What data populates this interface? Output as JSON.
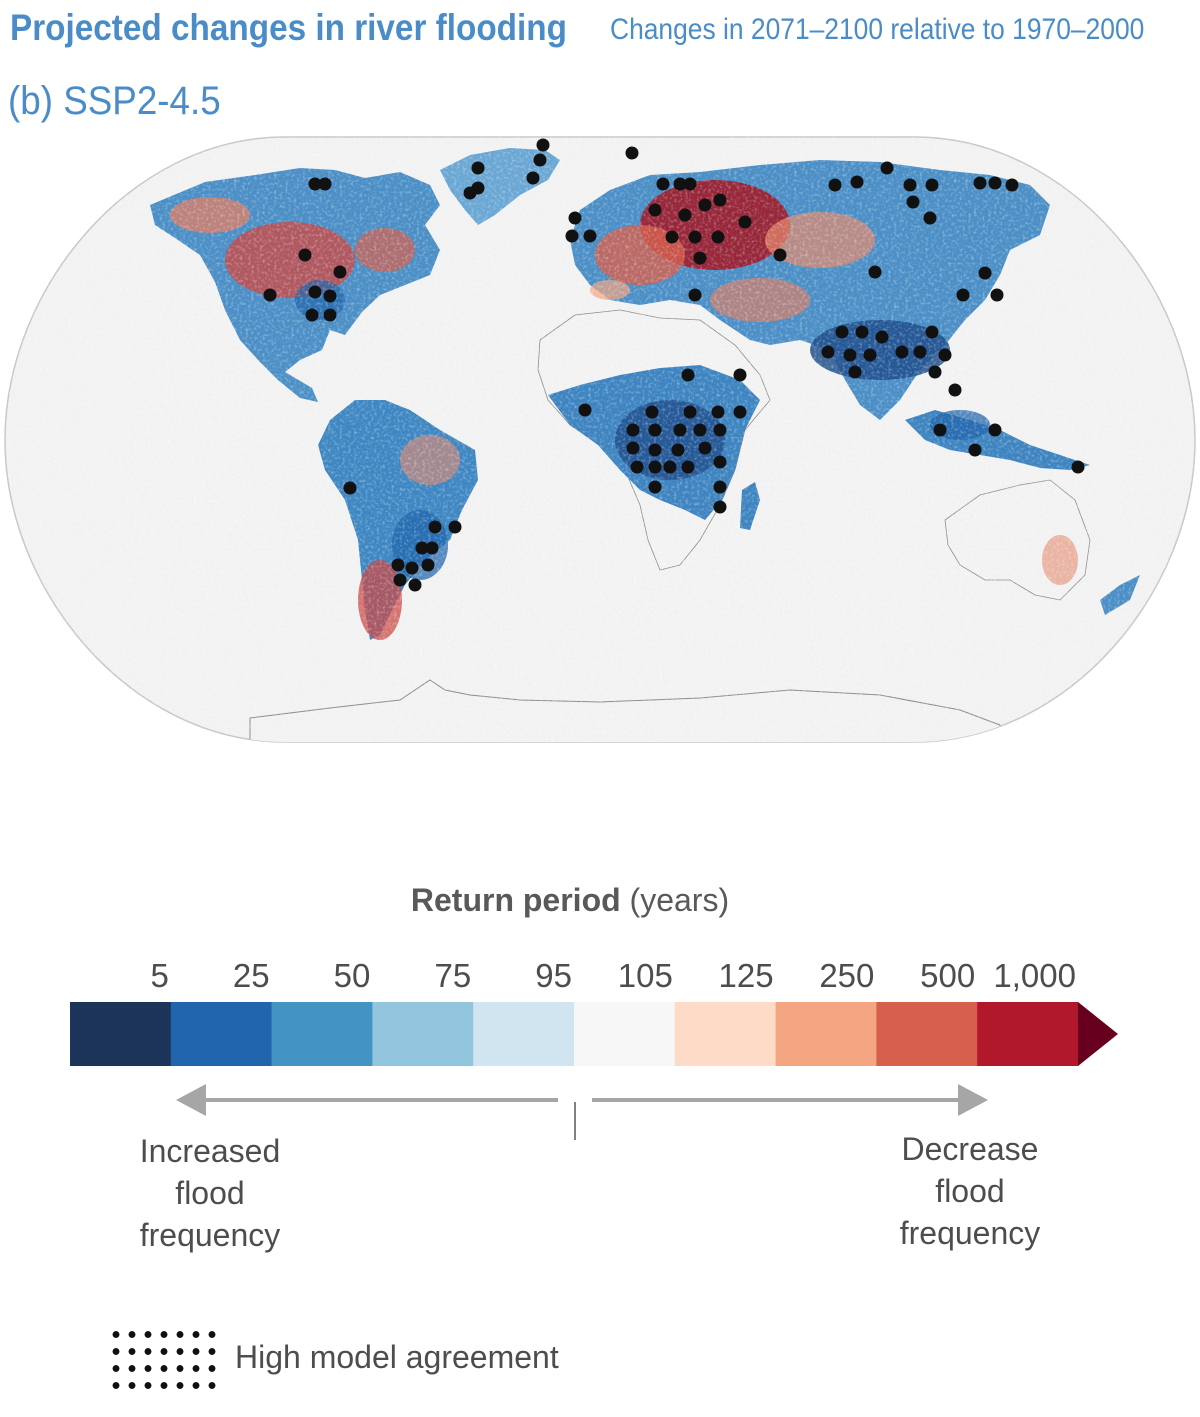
{
  "title": "Projected changes in river flooding",
  "subtitle": "Changes in 2071–2100 relative to 1970–2000",
  "panel_label": "(b) SSP2-4.5",
  "legend": {
    "title_bold": "Return period",
    "title_units": "(years)",
    "ticks": [
      "5",
      "25",
      "50",
      "75",
      "95",
      "105",
      "125",
      "250",
      "500",
      "1,000"
    ],
    "bin_colors": [
      "#1b3458",
      "#2166ac",
      "#4393c3",
      "#92c5de",
      "#d1e5f0",
      "#f7f7f7",
      "#fddbc7",
      "#f4a582",
      "#d6604d",
      "#b2182b"
    ],
    "overflow_color": "#67001f",
    "left_label": [
      "Increased",
      "flood",
      "frequency"
    ],
    "right_label": [
      "Decrease",
      "flood",
      "frequency"
    ],
    "arrow_color": "#a6a6a6"
  },
  "stipple": {
    "label": "High model agreement"
  },
  "map": {
    "projection": "Robinson",
    "ocean_color": "#f2f2f2",
    "stippled_regions": [
      "Russia",
      "eastern North America",
      "Central Africa",
      "South Asia",
      "south-eastern South America"
    ]
  }
}
